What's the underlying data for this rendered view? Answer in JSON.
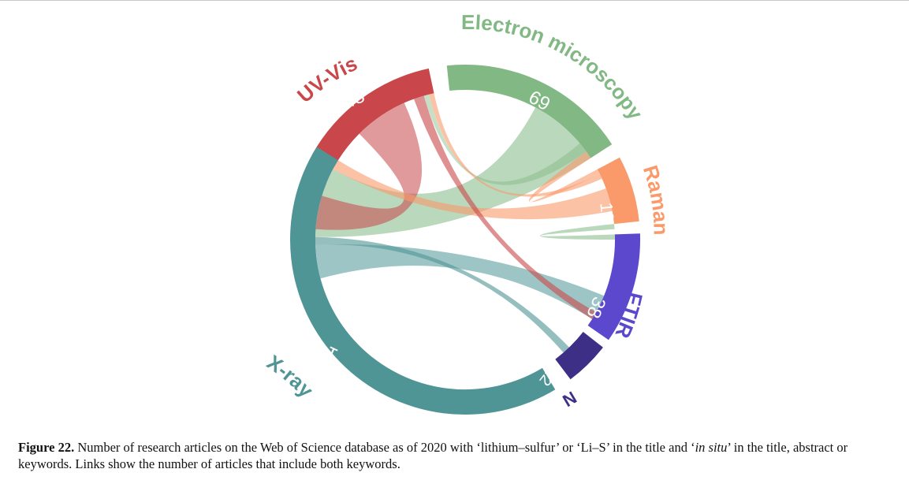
{
  "diagram": {
    "type": "chord",
    "groups": [
      {
        "id": "uvvis",
        "name": "UV-Vis",
        "count": "48",
        "color": "#c9474a"
      },
      {
        "id": "em",
        "name": "Electron microscopy",
        "count": "69",
        "color": "#81b883"
      },
      {
        "id": "raman",
        "name": "Raman",
        "count": "18",
        "color": "#fa9a6b"
      },
      {
        "id": "ftir",
        "name": "FTIR",
        "count": "38",
        "color": "#5b48cd"
      },
      {
        "id": "nmr",
        "name": "NMR",
        "count": "12",
        "color": "#3e2f86"
      },
      {
        "id": "xray",
        "name": "X-ray",
        "count": "147",
        "color": "#4f9595"
      }
    ],
    "links": [
      {
        "from": "em",
        "to": "xray"
      },
      {
        "from": "uvvis",
        "to": "xray"
      },
      {
        "from": "raman",
        "to": "xray"
      },
      {
        "from": "ftir",
        "to": "xray"
      },
      {
        "from": "nmr",
        "to": "xray"
      },
      {
        "from": "uvvis",
        "to": "ftir"
      },
      {
        "from": "uvvis",
        "to": "em"
      },
      {
        "from": "uvvis",
        "to": "raman"
      },
      {
        "from": "em",
        "to": "raman"
      },
      {
        "from": "raman",
        "to": "ftir"
      }
    ]
  },
  "caption": {
    "label": "Figure 22.",
    "text_1": " Number of research articles on the Web of Science database as of 2020 with ‘lithium–sulfur’ or ‘Li–S’ in the title and ‘",
    "text_italic": "in situ",
    "text_2": "’ in the title, abstract or keywords. Links show the number of articles that include both keywords."
  }
}
